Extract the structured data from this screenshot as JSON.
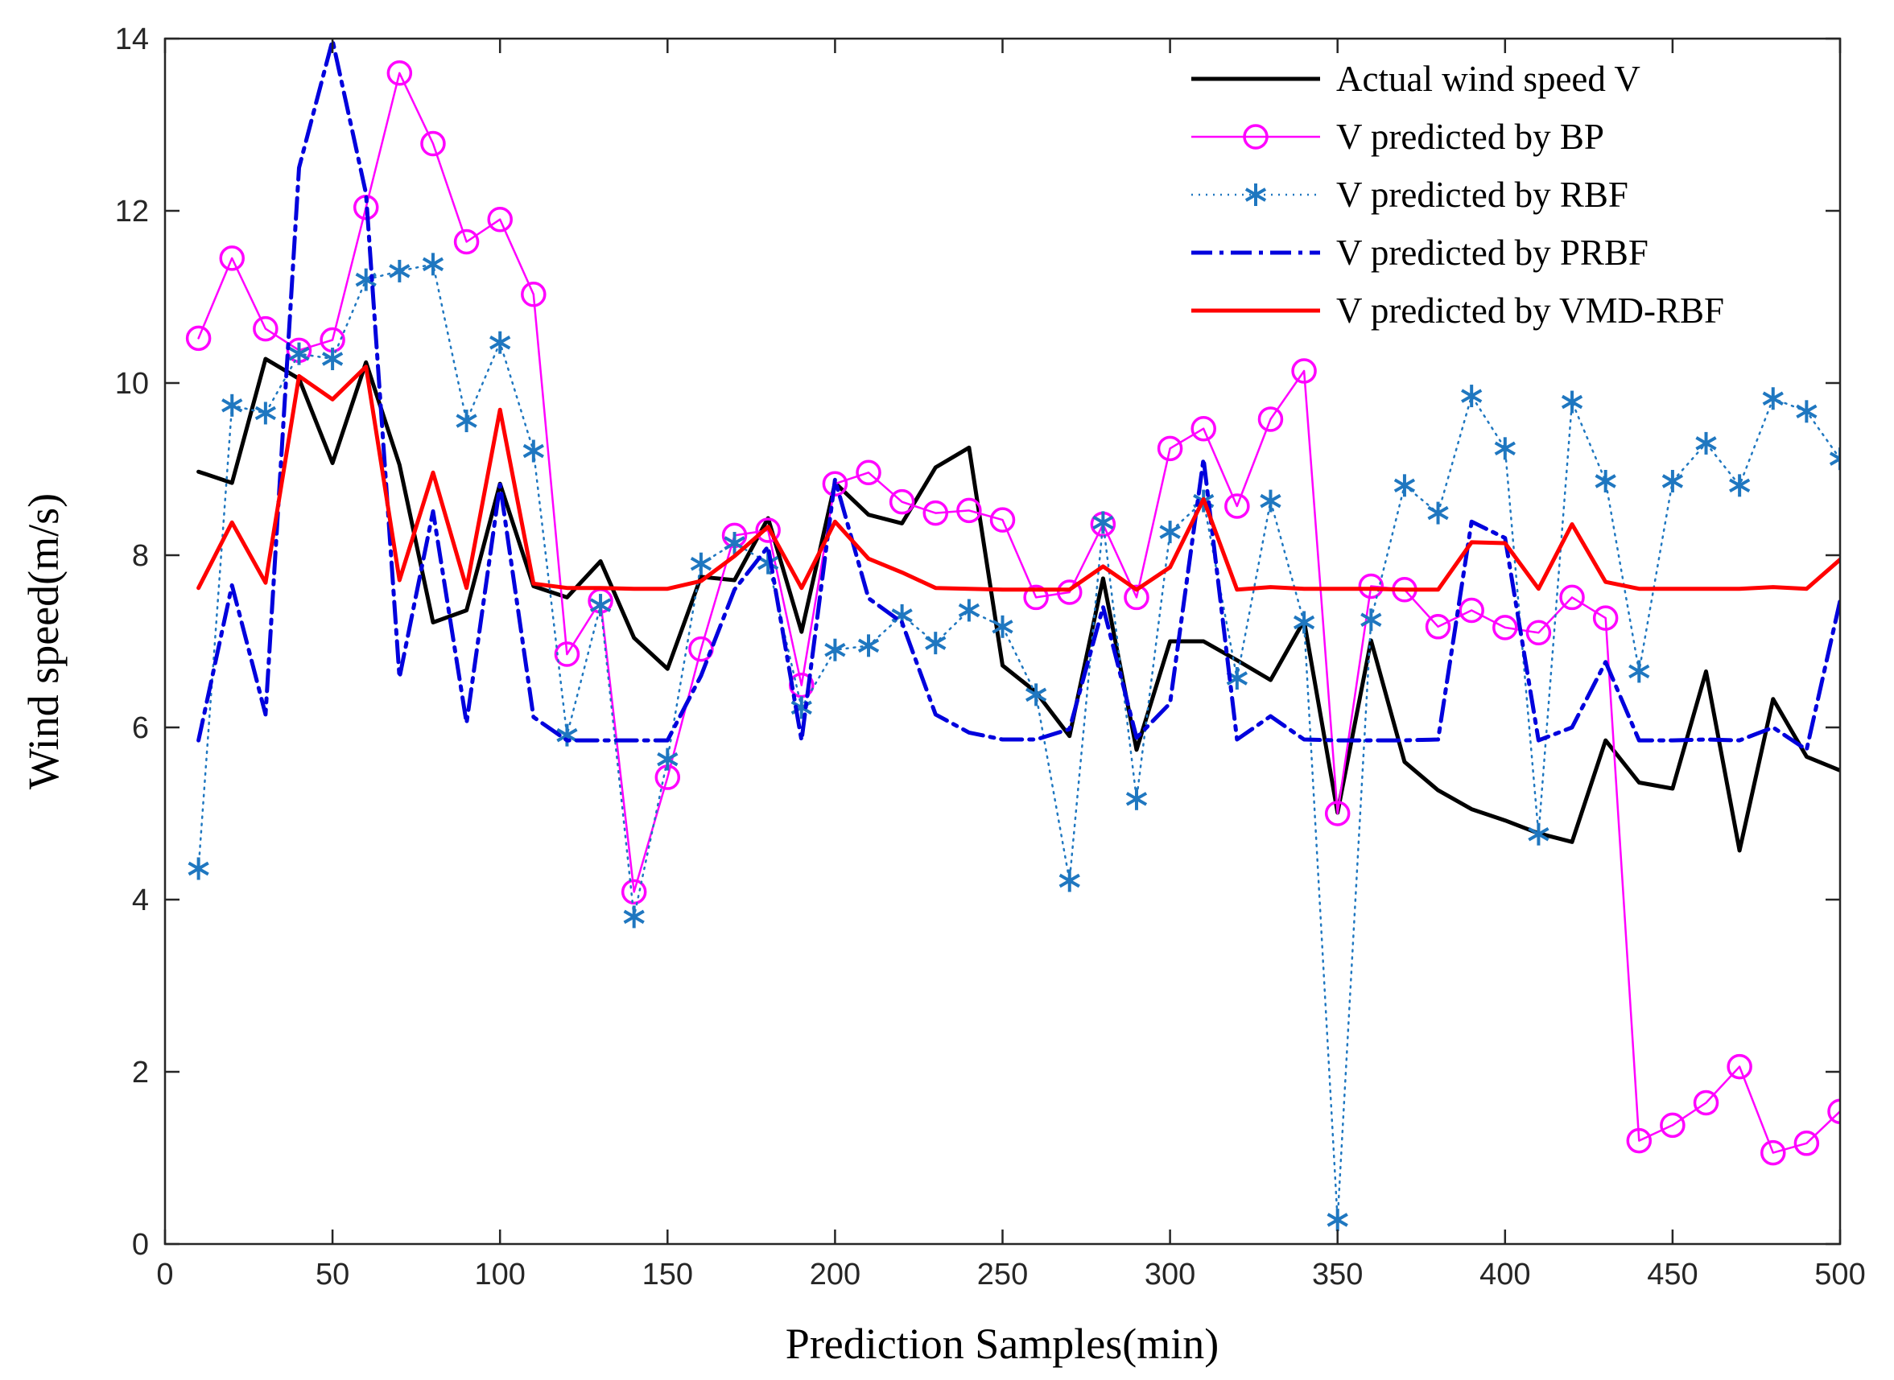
{
  "chart_data": {
    "type": "line",
    "xlabel": "Prediction Samples(min)",
    "ylabel": "Wind speed(m/s)",
    "xlim": [
      0,
      500
    ],
    "ylim": [
      0,
      14
    ],
    "xticks": [
      0,
      50,
      100,
      150,
      200,
      250,
      300,
      350,
      400,
      450,
      500
    ],
    "yticks": [
      0,
      2,
      4,
      6,
      8,
      10,
      12,
      14
    ],
    "grid": false,
    "legend_position": "top-right",
    "x": [
      10,
      20,
      30,
      40,
      50,
      60,
      70,
      80,
      90,
      100,
      110,
      120,
      130,
      140,
      150,
      160,
      170,
      180,
      190,
      200,
      210,
      220,
      230,
      240,
      250,
      260,
      270,
      280,
      290,
      300,
      310,
      320,
      330,
      340,
      350,
      360,
      370,
      380,
      390,
      400,
      410,
      420,
      430,
      440,
      450,
      460,
      470,
      480,
      490,
      500
    ],
    "series": [
      {
        "name": "Actual wind speed V",
        "color": "#000000",
        "style": "solid",
        "marker": "none",
        "values": [
          8.97,
          8.84,
          10.28,
          10.05,
          9.07,
          10.24,
          9.05,
          7.22,
          7.36,
          8.83,
          7.64,
          7.51,
          7.93,
          7.04,
          6.68,
          7.75,
          7.71,
          8.43,
          7.11,
          8.84,
          8.47,
          8.37,
          9.02,
          9.25,
          6.72,
          6.41,
          5.9,
          7.73,
          5.74,
          7.0,
          7.0,
          6.78,
          6.55,
          7.24,
          5.01,
          7.01,
          5.6,
          5.27,
          5.05,
          4.92,
          4.77,
          4.67,
          5.85,
          5.36,
          5.29,
          6.65,
          4.57,
          6.33,
          5.66,
          5.5
        ]
      },
      {
        "name": "V predicted by BP",
        "color": "#ff00ff",
        "style": "solid",
        "marker": "circle",
        "values": [
          10.52,
          11.45,
          10.63,
          10.38,
          10.5,
          12.04,
          13.6,
          12.78,
          11.64,
          11.9,
          11.03,
          6.85,
          7.47,
          4.09,
          5.42,
          6.91,
          8.23,
          8.29,
          6.49,
          8.83,
          8.96,
          8.62,
          8.49,
          8.52,
          8.41,
          7.51,
          7.57,
          8.36,
          7.51,
          9.24,
          9.47,
          8.57,
          9.58,
          10.14,
          5.0,
          7.64,
          7.6,
          7.17,
          7.36,
          7.16,
          7.1,
          7.51,
          7.27,
          1.2,
          1.38,
          1.64,
          2.06,
          1.06,
          1.17,
          1.54
        ]
      },
      {
        "name": "V predicted by RBF",
        "color": "#1f77c0",
        "style": "dotted",
        "marker": "asterisk",
        "values": [
          4.36,
          9.74,
          9.65,
          10.34,
          10.28,
          11.2,
          11.3,
          11.38,
          9.56,
          10.47,
          9.21,
          5.91,
          7.42,
          3.8,
          5.63,
          7.9,
          8.14,
          7.91,
          6.23,
          6.9,
          6.95,
          7.3,
          6.98,
          7.36,
          7.17,
          6.38,
          4.22,
          8.38,
          5.17,
          8.27,
          8.63,
          6.57,
          8.63,
          7.22,
          0.28,
          7.25,
          8.81,
          8.49,
          9.85,
          9.24,
          4.76,
          9.78,
          8.86,
          6.65,
          8.86,
          9.3,
          8.81,
          9.82,
          9.67,
          9.12
        ]
      },
      {
        "name": "V predicted by PRBF",
        "color": "#0000dd",
        "style": "dashdot",
        "marker": "none",
        "values": [
          5.85,
          7.65,
          6.15,
          12.5,
          13.98,
          12.2,
          6.58,
          8.51,
          6.05,
          8.82,
          6.12,
          5.85,
          5.85,
          5.85,
          5.85,
          6.6,
          7.6,
          8.1,
          5.85,
          8.88,
          7.5,
          7.22,
          6.15,
          5.94,
          5.86,
          5.86,
          5.98,
          7.4,
          5.88,
          6.28,
          9.12,
          5.86,
          6.13,
          5.86,
          5.85,
          5.85,
          5.85,
          5.86,
          8.39,
          8.2,
          5.85,
          6.0,
          6.76,
          5.85,
          5.85,
          5.86,
          5.85,
          6.0,
          5.74,
          7.47
        ]
      },
      {
        "name": "V predicted by VMD-RBF",
        "color": "#ff0000",
        "style": "solid",
        "marker": "none",
        "values": [
          7.62,
          8.38,
          7.68,
          10.08,
          9.81,
          10.19,
          7.71,
          8.96,
          7.62,
          9.69,
          7.67,
          7.62,
          7.62,
          7.61,
          7.61,
          7.7,
          7.99,
          8.33,
          7.62,
          8.39,
          7.96,
          7.8,
          7.62,
          7.61,
          7.6,
          7.6,
          7.6,
          7.87,
          7.6,
          7.86,
          8.65,
          7.6,
          7.63,
          7.61,
          7.61,
          7.61,
          7.6,
          7.6,
          8.15,
          8.14,
          7.61,
          8.36,
          7.69,
          7.61,
          7.61,
          7.61,
          7.61,
          7.63,
          7.61,
          7.95
        ]
      }
    ]
  }
}
